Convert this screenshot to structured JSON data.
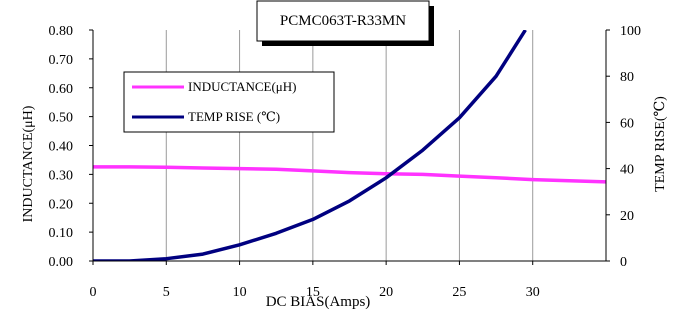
{
  "chart_data": {
    "type": "line",
    "title": "PCMC063T-R33MN",
    "xlabel": "DC BIAS(Amps)",
    "ylabel": "INDUCTANCE(μH)",
    "y2label": "TEMP RISE(℃)",
    "xlim": [
      0,
      35
    ],
    "ylim": [
      0,
      0.8
    ],
    "y2lim": [
      0,
      100
    ],
    "x_ticks": [
      "0",
      "5",
      "10",
      "15",
      "20",
      "25",
      "30"
    ],
    "y_ticks": [
      "0.00",
      "0.10",
      "0.20",
      "0.30",
      "0.40",
      "0.50",
      "0.60",
      "0.70",
      "0.80"
    ],
    "y2_ticks": [
      "0",
      "20",
      "40",
      "60",
      "80",
      "100"
    ],
    "grid": "vertical",
    "legend_position": "left",
    "series": [
      {
        "name": "INDUCTANCE(μH)",
        "axis": "left",
        "color": "#ff33ff",
        "x": [
          0,
          2.5,
          5,
          7.5,
          10,
          12.5,
          15,
          17.5,
          20,
          22.5,
          25,
          27.5,
          30,
          32.5,
          35
        ],
        "values": [
          0.326,
          0.326,
          0.325,
          0.322,
          0.32,
          0.318,
          0.312,
          0.306,
          0.302,
          0.3,
          0.294,
          0.288,
          0.282,
          0.278,
          0.274
        ]
      },
      {
        "name": "TEMP RISE (℃)",
        "axis": "right",
        "color": "#000080",
        "x": [
          0,
          2.5,
          5,
          7.5,
          10,
          12.5,
          15,
          17.5,
          20,
          22.5,
          25,
          27.5,
          29.5
        ],
        "values": [
          0,
          0,
          1,
          3,
          7,
          12,
          18,
          26,
          36,
          48,
          62,
          80,
          100
        ]
      }
    ]
  }
}
